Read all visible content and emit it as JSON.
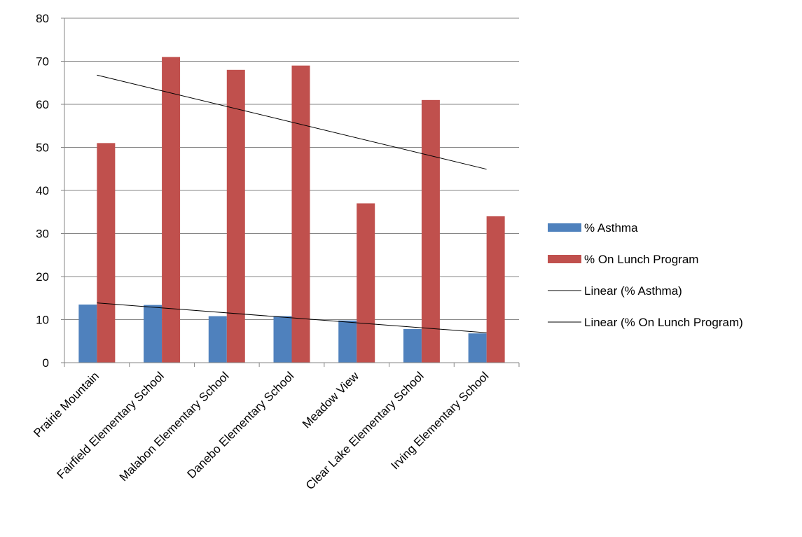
{
  "chart_data": {
    "type": "bar",
    "categories": [
      "Prairie Mountain",
      "Fairfield Elementary School",
      "Malabon Elementary School",
      "Danebo Elementary School",
      "Meadow View",
      "Clear Lake Elementary School",
      "Irving Elementary School"
    ],
    "series": [
      {
        "name": "% Asthma",
        "values": [
          13.5,
          13.4,
          10.8,
          10.8,
          9.8,
          7.8,
          6.8
        ],
        "color": "#4f81bd"
      },
      {
        "name": "% On Lunch Program",
        "values": [
          51,
          71,
          68,
          69,
          37,
          61,
          34
        ],
        "color": "#c0504d"
      }
    ],
    "trendlines": [
      {
        "name": "Linear (% Asthma)",
        "series": "% Asthma",
        "color": "#000000"
      },
      {
        "name": "Linear (% On Lunch Program)",
        "series": "% On Lunch Program",
        "color": "#000000"
      }
    ],
    "ylim": [
      0,
      80
    ],
    "yticks": [
      0,
      10,
      20,
      30,
      40,
      50,
      60,
      70,
      80
    ],
    "grid": true,
    "legend_position": "right",
    "title": "",
    "xlabel": "",
    "ylabel": ""
  }
}
